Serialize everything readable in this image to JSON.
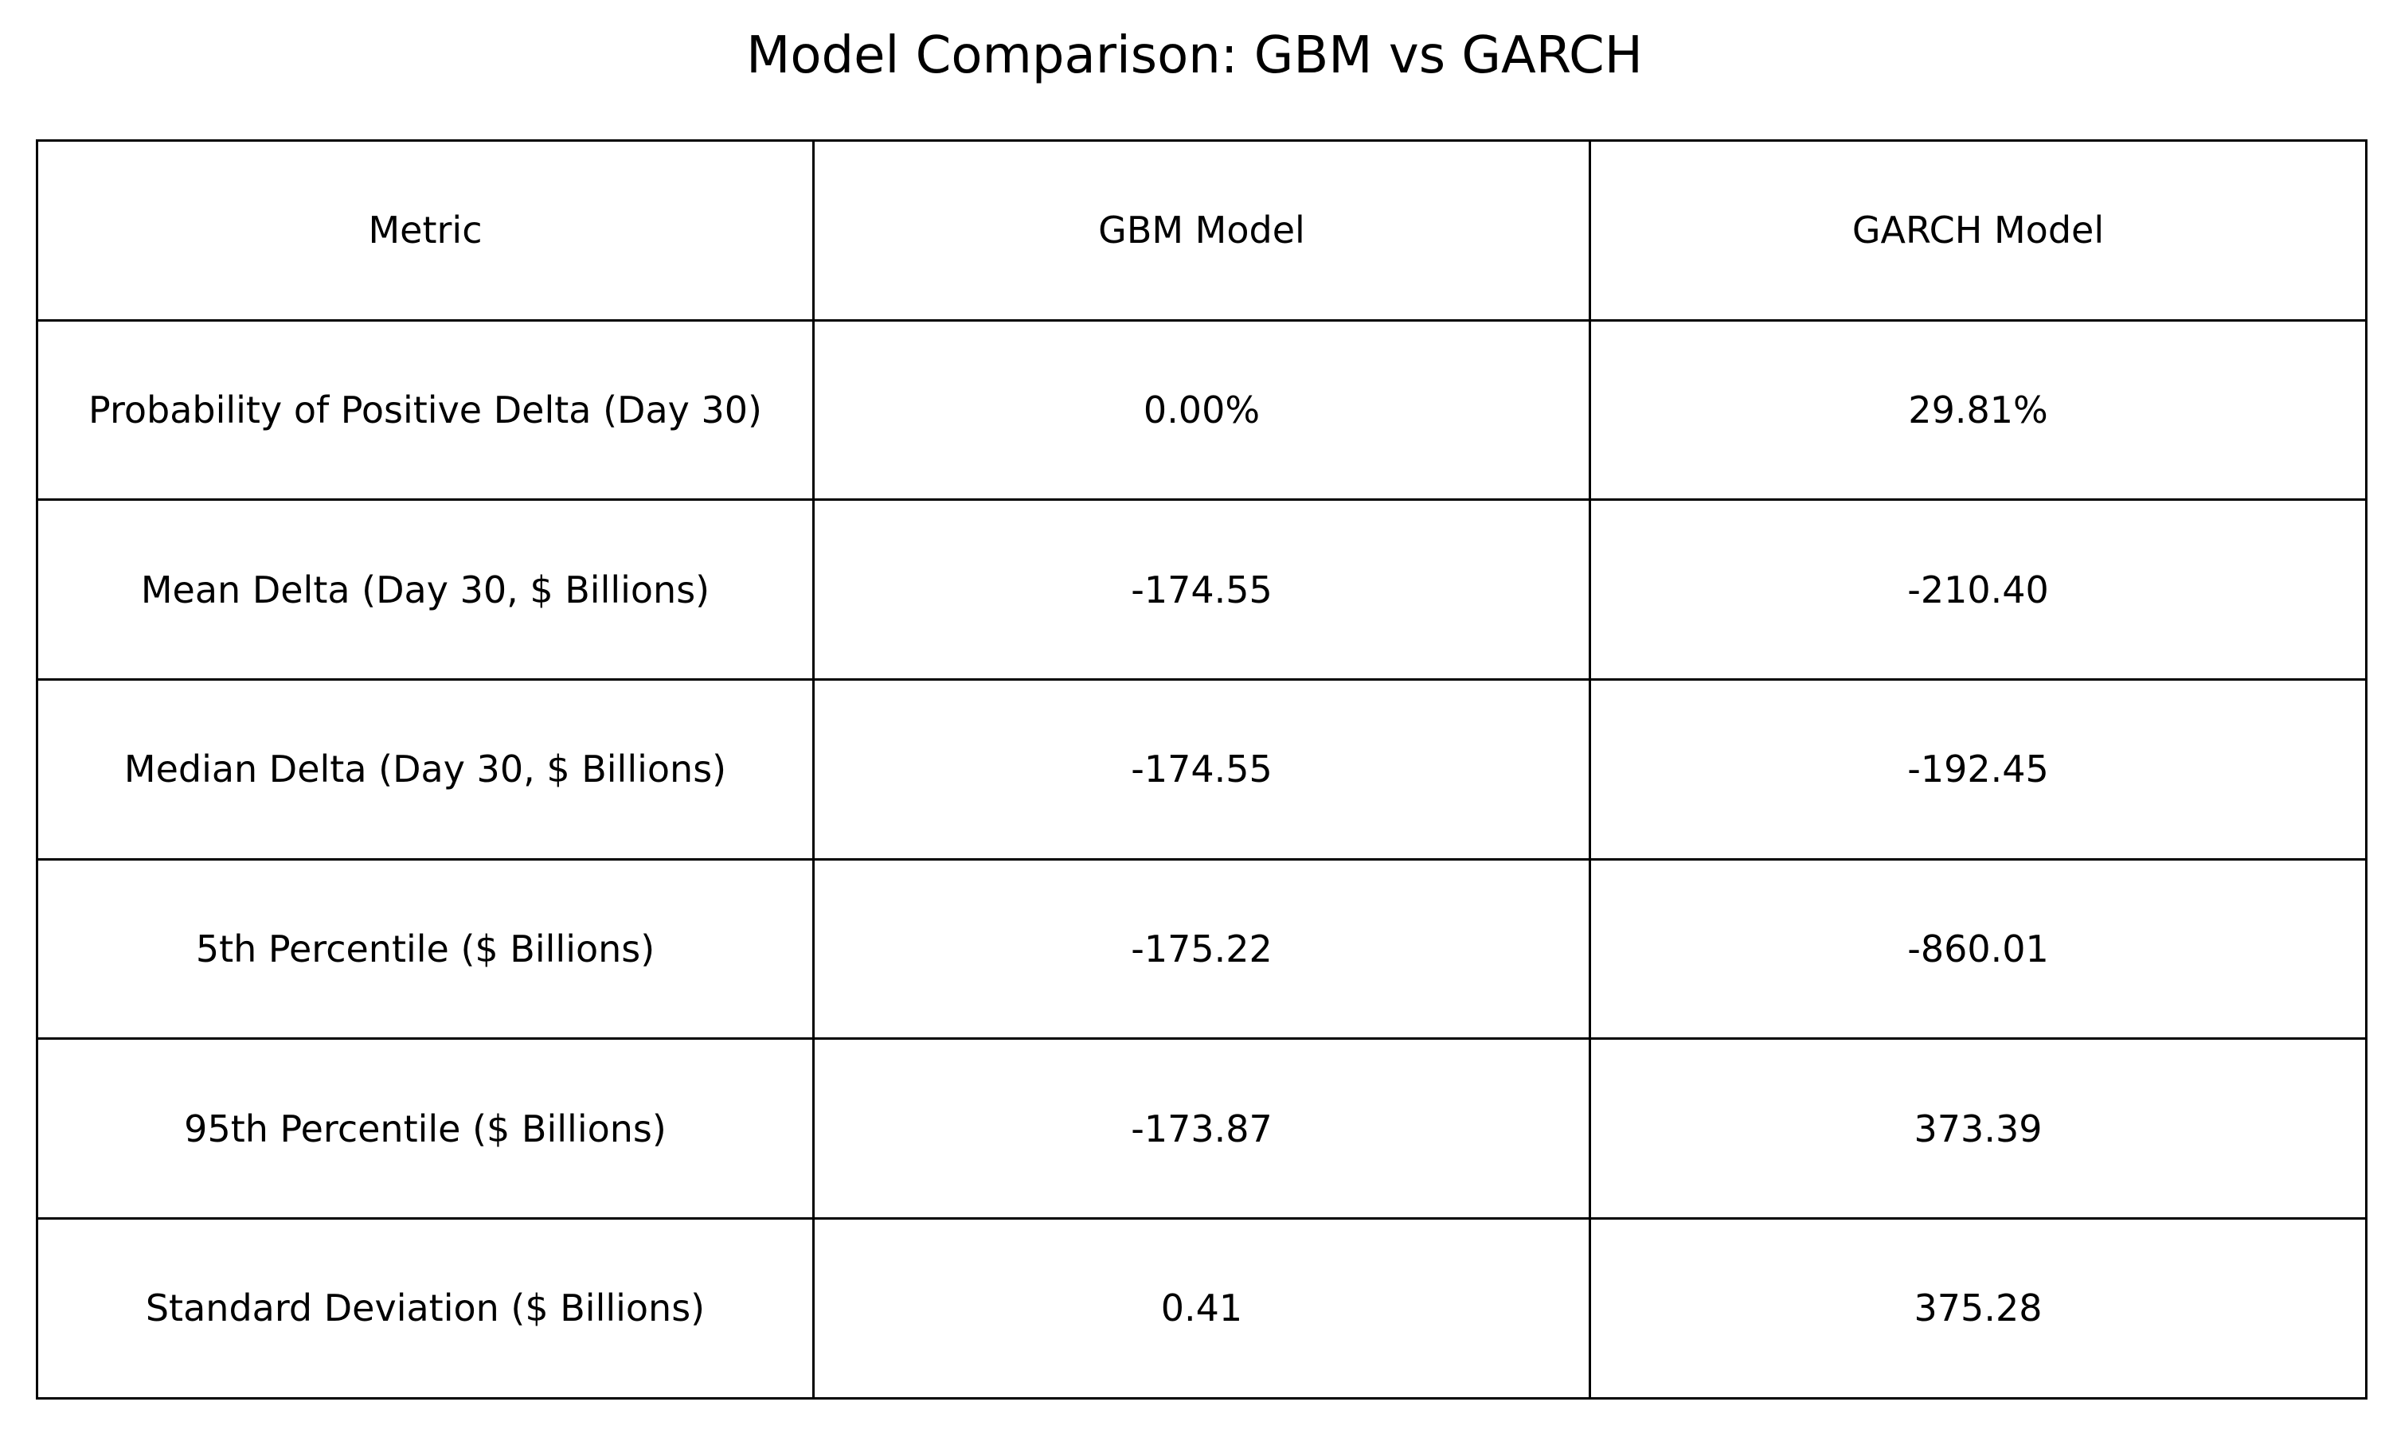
{
  "chart_data": {
    "type": "table",
    "title": "Model Comparison: GBM vs GARCH",
    "columns": [
      "Metric",
      "GBM Model",
      "GARCH Model"
    ],
    "rows": [
      [
        "Probability of Positive Delta (Day 30)",
        "0.00%",
        "29.81%"
      ],
      [
        "Mean Delta (Day 30, $ Billions)",
        "-174.55",
        "-210.40"
      ],
      [
        "Median Delta (Day 30, $ Billions)",
        "-174.55",
        "-192.45"
      ],
      [
        "5th Percentile ($ Billions)",
        "-175.22",
        "-860.01"
      ],
      [
        "95th Percentile ($ Billions)",
        "-173.87",
        "373.39"
      ],
      [
        "Standard Deviation ($ Billions)",
        "0.41",
        "375.28"
      ]
    ]
  }
}
